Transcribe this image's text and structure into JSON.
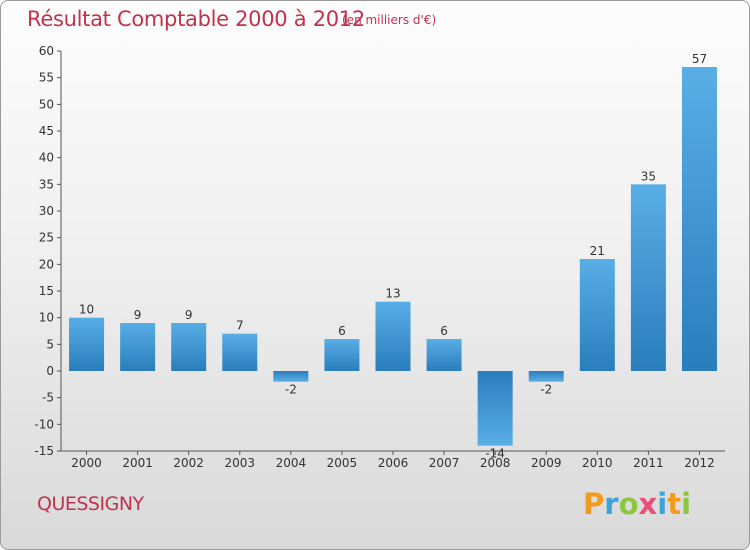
{
  "title": "Résultat Comptable 2000 à 2012",
  "subtitle": "(en milliers d'€)",
  "commune": "QUESSIGNY",
  "logo": {
    "letters": [
      "P",
      "r",
      "o",
      "x",
      "i",
      "t",
      "i"
    ],
    "colors": [
      "#f29a1e",
      "#3aa5d8",
      "#8cc63f",
      "#e94e77",
      "#3aa5d8",
      "#f29a1e",
      "#8cc63f"
    ]
  },
  "colors": {
    "title": "#c0334d",
    "bar_top": "#5aaee6",
    "bar_bottom": "#2a7dbc",
    "axis": "#555555"
  },
  "chart_data": {
    "type": "bar",
    "title": "Résultat Comptable 2000 à 2012",
    "subtitle": "(en milliers d'€)",
    "categories": [
      "2000",
      "2001",
      "2002",
      "2003",
      "2004",
      "2005",
      "2006",
      "2007",
      "2008",
      "2009",
      "2010",
      "2011",
      "2012"
    ],
    "values": [
      10,
      9,
      9,
      7,
      -2,
      6,
      13,
      6,
      -14,
      -2,
      21,
      35,
      57
    ],
    "labels": [
      "10",
      "9",
      "9",
      "7",
      "-2",
      "6",
      "13",
      "6",
      "-14",
      "-2",
      "21",
      "35",
      "57"
    ],
    "ylim": [
      -15,
      60
    ],
    "yticks": [
      -15,
      -10,
      -5,
      0,
      5,
      10,
      15,
      20,
      25,
      30,
      35,
      40,
      45,
      50,
      55,
      60
    ],
    "ytick_labels": [
      "-15",
      "-10",
      "-5",
      "0",
      "5",
      "10",
      "15",
      "20",
      "25",
      "30",
      "35",
      "40",
      "45",
      "50",
      "55",
      "60"
    ],
    "xlabel": "",
    "ylabel": "",
    "grid": false
  }
}
